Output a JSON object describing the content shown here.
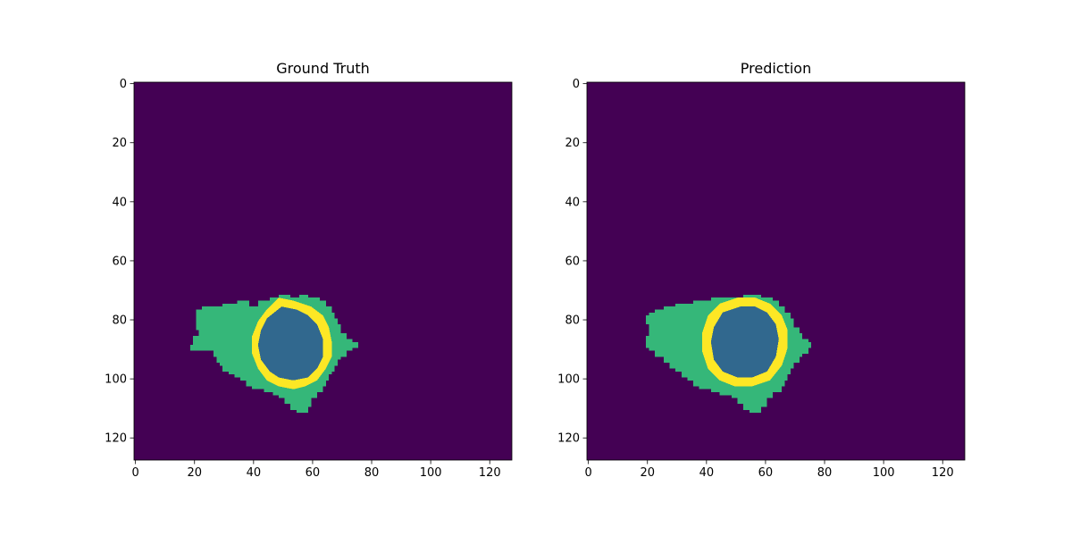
{
  "figure_colors": {
    "background": "#440154",
    "class_1": "#31688e",
    "class_2": "#35b779",
    "class_3": "#fde725"
  },
  "chart_data": [
    {
      "type": "heatmap",
      "title": "Ground Truth",
      "xlim": [
        0,
        128
      ],
      "ylim": [
        128,
        0
      ],
      "xticks": [
        0,
        20,
        40,
        60,
        80,
        100,
        120
      ],
      "yticks": [
        0,
        20,
        40,
        60,
        80,
        100,
        120
      ],
      "colormap": "viridis",
      "regions": [
        {
          "class": "outer",
          "polygon": [
            [
              19,
              91
            ],
            [
              19,
              89
            ],
            [
              20,
              89
            ],
            [
              20,
              86
            ],
            [
              22,
              86
            ],
            [
              22,
              84
            ],
            [
              21,
              84
            ],
            [
              21,
              77
            ],
            [
              23,
              77
            ],
            [
              23,
              76
            ],
            [
              30,
              76
            ],
            [
              30,
              75
            ],
            [
              35,
              75
            ],
            [
              35,
              74
            ],
            [
              39,
              74
            ],
            [
              39,
              76
            ],
            [
              42,
              76
            ],
            [
              42,
              74
            ],
            [
              46,
              74
            ],
            [
              46,
              73
            ],
            [
              49,
              73
            ],
            [
              49,
              72
            ],
            [
              53,
              72
            ],
            [
              53,
              73
            ],
            [
              56,
              73
            ],
            [
              56,
              72
            ],
            [
              59,
              72
            ],
            [
              59,
              73
            ],
            [
              63,
              73
            ],
            [
              63,
              74
            ],
            [
              65,
              74
            ],
            [
              65,
              76
            ],
            [
              67,
              76
            ],
            [
              67,
              78
            ],
            [
              68,
              78
            ],
            [
              68,
              80
            ],
            [
              69,
              80
            ],
            [
              69,
              82
            ],
            [
              70,
              82
            ],
            [
              70,
              85
            ],
            [
              72,
              85
            ],
            [
              72,
              87
            ],
            [
              74,
              87
            ],
            [
              74,
              88
            ],
            [
              76,
              88
            ],
            [
              76,
              90
            ],
            [
              74,
              90
            ],
            [
              74,
              91
            ],
            [
              72,
              91
            ],
            [
              72,
              93
            ],
            [
              70,
              93
            ],
            [
              70,
              94
            ],
            [
              69,
              94
            ],
            [
              69,
              96
            ],
            [
              68,
              96
            ],
            [
              68,
              98
            ],
            [
              67,
              98
            ],
            [
              67,
              99
            ],
            [
              66,
              99
            ],
            [
              66,
              101
            ],
            [
              65,
              101
            ],
            [
              65,
              103
            ],
            [
              64,
              103
            ],
            [
              64,
              105
            ],
            [
              62,
              105
            ],
            [
              62,
              107
            ],
            [
              60,
              107
            ],
            [
              60,
              110
            ],
            [
              59,
              110
            ],
            [
              59,
              112
            ],
            [
              55,
              112
            ],
            [
              55,
              111
            ],
            [
              53,
              111
            ],
            [
              53,
              109
            ],
            [
              51,
              109
            ],
            [
              51,
              107
            ],
            [
              49,
              107
            ],
            [
              49,
              106
            ],
            [
              47,
              106
            ],
            [
              47,
              105
            ],
            [
              44,
              105
            ],
            [
              44,
              104
            ],
            [
              40,
              104
            ],
            [
              40,
              103
            ],
            [
              38,
              103
            ],
            [
              38,
              101
            ],
            [
              36,
              101
            ],
            [
              36,
              100
            ],
            [
              34,
              100
            ],
            [
              34,
              99
            ],
            [
              32,
              99
            ],
            [
              32,
              98
            ],
            [
              30,
              98
            ],
            [
              30,
              96
            ],
            [
              29,
              96
            ],
            [
              29,
              95
            ],
            [
              28,
              95
            ],
            [
              28,
              93
            ],
            [
              27,
              93
            ],
            [
              27,
              91
            ]
          ]
        },
        {
          "class": "ring",
          "polygon": [
            [
              49,
              73
            ],
            [
              54,
              74
            ],
            [
              60,
              76
            ],
            [
              64,
              79
            ],
            [
              66,
              83
            ],
            [
              67,
              88
            ],
            [
              67,
              93
            ],
            [
              65,
              97
            ],
            [
              62,
              101
            ],
            [
              58,
              103
            ],
            [
              54,
              104
            ],
            [
              49,
              103
            ],
            [
              45,
              101
            ],
            [
              42,
              97
            ],
            [
              40,
              92
            ],
            [
              40,
              86
            ],
            [
              42,
              81
            ],
            [
              45,
              77
            ]
          ]
        },
        {
          "class": "core",
          "polygon": [
            [
              50,
              76
            ],
            [
              55,
              77
            ],
            [
              59,
              79
            ],
            [
              62,
              82
            ],
            [
              64,
              87
            ],
            [
              64,
              93
            ],
            [
              62,
              97
            ],
            [
              59,
              100
            ],
            [
              54,
              101
            ],
            [
              49,
              100
            ],
            [
              46,
              98
            ],
            [
              43,
              94
            ],
            [
              42,
              89
            ],
            [
              43,
              84
            ],
            [
              45,
              80
            ]
          ]
        }
      ]
    },
    {
      "type": "heatmap",
      "title": "Prediction",
      "xlim": [
        0,
        128
      ],
      "ylim": [
        128,
        0
      ],
      "xticks": [
        0,
        20,
        40,
        60,
        80,
        100,
        120
      ],
      "yticks": [
        0,
        20,
        40,
        60,
        80,
        100,
        120
      ],
      "colormap": "viridis",
      "regions": [
        {
          "class": "outer",
          "polygon": [
            [
              20,
              90
            ],
            [
              20,
              86
            ],
            [
              21,
              86
            ],
            [
              21,
              82
            ],
            [
              20,
              82
            ],
            [
              20,
              79
            ],
            [
              21,
              79
            ],
            [
              21,
              78
            ],
            [
              23,
              78
            ],
            [
              23,
              77
            ],
            [
              26,
              77
            ],
            [
              26,
              76
            ],
            [
              30,
              76
            ],
            [
              30,
              75
            ],
            [
              36,
              75
            ],
            [
              36,
              74
            ],
            [
              42,
              74
            ],
            [
              42,
              73
            ],
            [
              53,
              73
            ],
            [
              53,
              72
            ],
            [
              59,
              72
            ],
            [
              59,
              73
            ],
            [
              63,
              73
            ],
            [
              63,
              74
            ],
            [
              65,
              74
            ],
            [
              65,
              76
            ],
            [
              67,
              76
            ],
            [
              67,
              78
            ],
            [
              69,
              78
            ],
            [
              69,
              80
            ],
            [
              70,
              80
            ],
            [
              70,
              83
            ],
            [
              72,
              83
            ],
            [
              72,
              85
            ],
            [
              73,
              85
            ],
            [
              73,
              87
            ],
            [
              75,
              87
            ],
            [
              75,
              88
            ],
            [
              76,
              88
            ],
            [
              76,
              90
            ],
            [
              75,
              90
            ],
            [
              75,
              92
            ],
            [
              73,
              92
            ],
            [
              73,
              93
            ],
            [
              72,
              93
            ],
            [
              72,
              95
            ],
            [
              70,
              95
            ],
            [
              70,
              97
            ],
            [
              69,
              97
            ],
            [
              69,
              99
            ],
            [
              68,
              99
            ],
            [
              68,
              101
            ],
            [
              67,
              101
            ],
            [
              67,
              103
            ],
            [
              66,
              103
            ],
            [
              66,
              105
            ],
            [
              63,
              105
            ],
            [
              63,
              107
            ],
            [
              61,
              107
            ],
            [
              61,
              110
            ],
            [
              59,
              110
            ],
            [
              59,
              112
            ],
            [
              55,
              112
            ],
            [
              55,
              111
            ],
            [
              53,
              111
            ],
            [
              53,
              109
            ],
            [
              51,
              109
            ],
            [
              51,
              107
            ],
            [
              49,
              107
            ],
            [
              49,
              106
            ],
            [
              45,
              106
            ],
            [
              45,
              105
            ],
            [
              42,
              105
            ],
            [
              42,
              104
            ],
            [
              38,
              104
            ],
            [
              38,
              103
            ],
            [
              36,
              103
            ],
            [
              36,
              101
            ],
            [
              34,
              101
            ],
            [
              34,
              100
            ],
            [
              32,
              100
            ],
            [
              32,
              98
            ],
            [
              30,
              98
            ],
            [
              30,
              97
            ],
            [
              28,
              97
            ],
            [
              28,
              95
            ],
            [
              26,
              95
            ],
            [
              26,
              93
            ],
            [
              23,
              93
            ],
            [
              23,
              91
            ],
            [
              21,
              91
            ],
            [
              21,
              90
            ]
          ]
        },
        {
          "class": "ring",
          "polygon": [
            [
              51,
              73
            ],
            [
              57,
              73
            ],
            [
              62,
              75
            ],
            [
              66,
              79
            ],
            [
              68,
              84
            ],
            [
              68,
              90
            ],
            [
              66,
              96
            ],
            [
              62,
              101
            ],
            [
              56,
              103
            ],
            [
              50,
              103
            ],
            [
              45,
              101
            ],
            [
              41,
              97
            ],
            [
              39,
              91
            ],
            [
              39,
              85
            ],
            [
              41,
              79
            ],
            [
              45,
              75
            ]
          ]
        },
        {
          "class": "core",
          "polygon": [
            [
              52,
              76
            ],
            [
              57,
              76
            ],
            [
              61,
              78
            ],
            [
              64,
              82
            ],
            [
              65,
              87
            ],
            [
              64,
              93
            ],
            [
              61,
              98
            ],
            [
              56,
              100
            ],
            [
              51,
              100
            ],
            [
              46,
              98
            ],
            [
              43,
              94
            ],
            [
              42,
              88
            ],
            [
              43,
              83
            ],
            [
              46,
              78
            ]
          ]
        }
      ]
    }
  ]
}
